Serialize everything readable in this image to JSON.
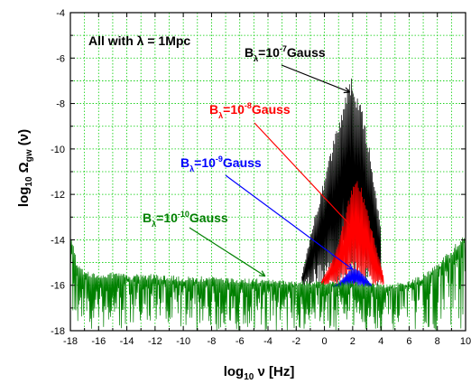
{
  "chart_data": {
    "type": "line",
    "title": "",
    "xlabel": {
      "prefix": "log",
      "sub": "10",
      "main": " ν [Hz]"
    },
    "ylabel": {
      "prefix": "log",
      "sub": "10",
      "omega": " Ω",
      "omega_sub": "gw",
      "suffix": " (ν)"
    },
    "xlim": [
      -18,
      10
    ],
    "ylim": [
      -18,
      -4
    ],
    "xticks": [
      -18,
      -16,
      -14,
      -12,
      -10,
      -8,
      -6,
      -4,
      -2,
      0,
      2,
      4,
      6,
      8,
      10
    ],
    "yticks": [
      -18,
      -16,
      -14,
      -12,
      -10,
      -8,
      -6,
      -4
    ],
    "grid": true,
    "grid_color": "#00cc00",
    "legend": "none",
    "annotations": [
      {
        "text": "All with λ = 1Mpc",
        "color": "#000000"
      },
      {
        "parts": [
          "B",
          "λ",
          "=10",
          "-7",
          "Gauss"
        ],
        "color": "#000000",
        "arrow_to": [
          1.8,
          -7.5
        ]
      },
      {
        "parts": [
          "B",
          "λ",
          "=10",
          "-8",
          "Gauss"
        ],
        "color": "#ff0000",
        "arrow_to": [
          2.2,
          -13.6
        ]
      },
      {
        "parts": [
          "B",
          "λ",
          "=10",
          "-9",
          "Gauss"
        ],
        "color": "#0000ff",
        "arrow_to": [
          2.0,
          -15.3
        ]
      },
      {
        "parts": [
          "B",
          "λ",
          "=10",
          "-10",
          "Gauss"
        ],
        "color": "#008000",
        "arrow_to": [
          -4.2,
          -15.6
        ]
      }
    ],
    "series": [
      {
        "color": "#000000",
        "envelope": {
          "x": [
            -1.6,
            -1.2,
            -0.8,
            -0.4,
            0.0,
            0.4,
            0.8,
            1.2,
            1.6,
            2.0,
            2.4,
            2.8,
            3.2,
            3.6,
            4.0
          ],
          "top": [
            -15.6,
            -14.4,
            -13.2,
            -12.2,
            -11.2,
            -10.2,
            -9.2,
            -8.2,
            -7.2,
            -6.8,
            -7.6,
            -8.6,
            -9.8,
            -11.6,
            -13.6
          ],
          "bottom": -16
        }
      },
      {
        "color": "#ff0000",
        "envelope": {
          "x": [
            -0.2,
            0.2,
            0.6,
            1.0,
            1.4,
            1.8,
            2.2,
            2.6,
            3.0,
            3.4,
            3.8,
            4.2
          ],
          "top": [
            -15.8,
            -15.3,
            -14.8,
            -14.0,
            -13.0,
            -12.0,
            -11.3,
            -11.6,
            -12.6,
            -13.6,
            -14.6,
            -15.6
          ],
          "bottom": -16
        }
      },
      {
        "color": "#0000ff",
        "envelope": {
          "x": [
            0.6,
            1.0,
            1.4,
            1.8,
            2.2,
            2.6,
            3.0,
            3.4
          ],
          "top": [
            -16.0,
            -15.9,
            -15.6,
            -15.3,
            -15.2,
            -15.4,
            -15.7,
            -16.0
          ],
          "bottom": -16.1
        }
      },
      {
        "color": "#008000",
        "envelope": {
          "x": [
            -18,
            -17.8,
            -17.5,
            -17,
            -16,
            -14,
            -12,
            -10,
            -8,
            -6,
            -4,
            -2,
            0,
            2,
            4,
            5,
            6,
            7,
            8,
            9,
            9.5,
            10
          ],
          "top": [
            -13.2,
            -14.2,
            -15.0,
            -15.4,
            -15.4,
            -15.5,
            -15.5,
            -15.6,
            -15.6,
            -15.7,
            -15.7,
            -15.8,
            -15.8,
            -15.8,
            -15.9,
            -15.9,
            -15.8,
            -15.5,
            -15.0,
            -14.4,
            -14.0,
            -13.6
          ],
          "bottom": -18
        }
      }
    ]
  }
}
